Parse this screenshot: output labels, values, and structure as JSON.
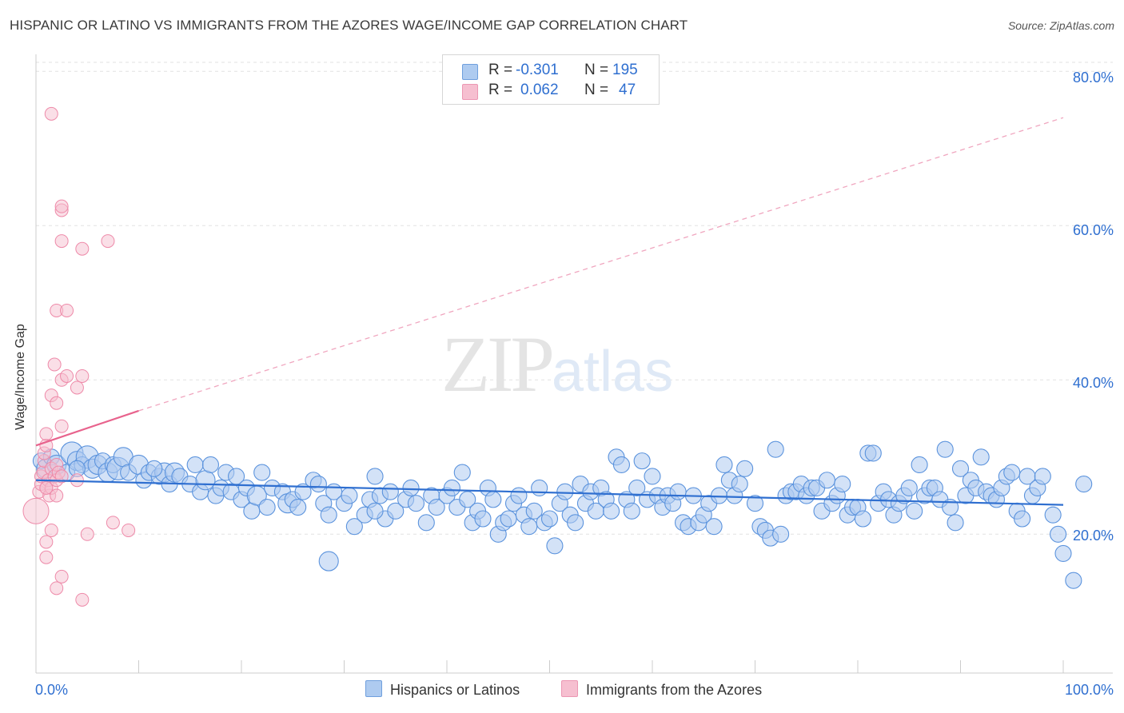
{
  "title": "HISPANIC OR LATINO VS IMMIGRANTS FROM THE AZORES WAGE/INCOME GAP CORRELATION CHART",
  "source": "Source: ZipAtlas.com",
  "watermark": {
    "zip": "ZIP",
    "atlas": "atlas"
  },
  "legend_top": {
    "rows": [
      {
        "r_label": "R =",
        "r_value": "-0.301",
        "n_label": "N =",
        "n_value": "195",
        "color": "#aecbf0"
      },
      {
        "r_label": "R =",
        "r_value": "0.062",
        "n_label": "N =",
        "n_value": "47",
        "color": "#f6bfd0"
      }
    ]
  },
  "legend_bottom": [
    {
      "label": "Hispanics or Latinos",
      "color": "#aecbf0"
    },
    {
      "label": "Immigrants from the Azores",
      "color": "#f6bfd0"
    }
  ],
  "chart_data": {
    "type": "scatter",
    "title": "HISPANIC OR LATINO VS IMMIGRANTS FROM THE AZORES WAGE/INCOME GAP CORRELATION CHART",
    "xlabel": "",
    "ylabel": "Wage/Income Gap",
    "xlim": [
      0,
      100
    ],
    "ylim": [
      2,
      82
    ],
    "x_tick_labels": [
      "0.0%",
      "100.0%"
    ],
    "y_ticks": [
      20,
      40,
      60,
      80
    ],
    "y_tick_labels": [
      "20.0%",
      "40.0%",
      "60.0%",
      "80.0%"
    ],
    "grid": true,
    "series": [
      {
        "name": "Hispanics or Latinos",
        "color": "#5b93dd",
        "fill": "#aecbf0",
        "trend": {
          "x": [
            0,
            100
          ],
          "y": [
            27.0,
            23.8
          ],
          "color": "#2f6fd0"
        },
        "points": [
          [
            0.5,
            29.5,
            10
          ],
          [
            1,
            28.5,
            12
          ],
          [
            1.5,
            30,
            10
          ],
          [
            2,
            29,
            12
          ],
          [
            3,
            28,
            10
          ],
          [
            3.5,
            30.5,
            14
          ],
          [
            4,
            29.5,
            12
          ],
          [
            4.5,
            29,
            10
          ],
          [
            5,
            30,
            14
          ],
          [
            5.5,
            28.5,
            12
          ],
          [
            6,
            29,
            12
          ],
          [
            6.5,
            29.5,
            10
          ],
          [
            7,
            28,
            12
          ],
          [
            7.5,
            29,
            10
          ],
          [
            8,
            28.5,
            14
          ],
          [
            8.5,
            30,
            12
          ],
          [
            9,
            28,
            10
          ],
          [
            10,
            29,
            12
          ],
          [
            10.5,
            27,
            10
          ],
          [
            11,
            28,
            10
          ],
          [
            12,
            27.5,
            10
          ],
          [
            12.5,
            28,
            12
          ],
          [
            13,
            26.5,
            10
          ],
          [
            13.5,
            28,
            12
          ],
          [
            14,
            27.5,
            10
          ],
          [
            15,
            26.5,
            10
          ],
          [
            15.5,
            29,
            10
          ],
          [
            16,
            25.5,
            10
          ],
          [
            16.5,
            27,
            12
          ],
          [
            17,
            29,
            10
          ],
          [
            17.5,
            25,
            10
          ],
          [
            18,
            26,
            10
          ],
          [
            18.5,
            28,
            10
          ],
          [
            19,
            25.5,
            10
          ],
          [
            19.5,
            27.5,
            10
          ],
          [
            20,
            24.5,
            10
          ],
          [
            20.5,
            26,
            10
          ],
          [
            21,
            23,
            10
          ],
          [
            21.5,
            25,
            12
          ],
          [
            22,
            28,
            10
          ],
          [
            22.5,
            23.5,
            10
          ],
          [
            23,
            26,
            10
          ],
          [
            24,
            25.5,
            10
          ],
          [
            24.5,
            24,
            12
          ],
          [
            25,
            24.5,
            10
          ],
          [
            25.5,
            23.5,
            10
          ],
          [
            26,
            25.5,
            10
          ],
          [
            27,
            27,
            10
          ],
          [
            27.5,
            26.5,
            10
          ],
          [
            28,
            24,
            10
          ],
          [
            28.5,
            22.5,
            10
          ],
          [
            29,
            25.5,
            10
          ],
          [
            30,
            24,
            10
          ],
          [
            30.5,
            25,
            10
          ],
          [
            31,
            21,
            10
          ],
          [
            32,
            22.5,
            10
          ],
          [
            32.5,
            24.5,
            10
          ],
          [
            33,
            27.5,
            10
          ],
          [
            33.5,
            25,
            10
          ],
          [
            34,
            22,
            10
          ],
          [
            34.5,
            25.5,
            10
          ],
          [
            35,
            23,
            10
          ],
          [
            36,
            24.5,
            10
          ],
          [
            36.5,
            26,
            10
          ],
          [
            37,
            24,
            10
          ],
          [
            38,
            21.5,
            10
          ],
          [
            38.5,
            25,
            10
          ],
          [
            39,
            23.5,
            10
          ],
          [
            40,
            25,
            10
          ],
          [
            40.5,
            26,
            10
          ],
          [
            41,
            23.5,
            10
          ],
          [
            41.5,
            28,
            10
          ],
          [
            42,
            24.5,
            10
          ],
          [
            42.5,
            21.5,
            10
          ],
          [
            43,
            23,
            10
          ],
          [
            43.5,
            22,
            10
          ],
          [
            44,
            26,
            10
          ],
          [
            44.5,
            24.5,
            10
          ],
          [
            45,
            20,
            10
          ],
          [
            45.5,
            21.5,
            10
          ],
          [
            46,
            22,
            10
          ],
          [
            46.5,
            24,
            10
          ],
          [
            47,
            25,
            10
          ],
          [
            47.5,
            22.5,
            10
          ],
          [
            48,
            21,
            10
          ],
          [
            48.5,
            23,
            10
          ],
          [
            49,
            26,
            10
          ],
          [
            49.5,
            21.5,
            10
          ],
          [
            50,
            22,
            10
          ],
          [
            50.5,
            18.5,
            10
          ],
          [
            51,
            24,
            10
          ],
          [
            51.5,
            25.5,
            10
          ],
          [
            52,
            22.5,
            10
          ],
          [
            52.5,
            21.5,
            10
          ],
          [
            53,
            26.5,
            10
          ],
          [
            53.5,
            24,
            10
          ],
          [
            54,
            25.5,
            10
          ],
          [
            54.5,
            23,
            10
          ],
          [
            55,
            26,
            10
          ],
          [
            55.5,
            24.5,
            10
          ],
          [
            56,
            23,
            10
          ],
          [
            56.5,
            30,
            10
          ],
          [
            57,
            29,
            10
          ],
          [
            57.5,
            24.5,
            10
          ],
          [
            58,
            23,
            10
          ],
          [
            58.5,
            26,
            10
          ],
          [
            59,
            29.5,
            10
          ],
          [
            59.5,
            24.5,
            10
          ],
          [
            60,
            27.5,
            10
          ],
          [
            60.5,
            25,
            10
          ],
          [
            61,
            23.5,
            10
          ],
          [
            61.5,
            25,
            10
          ],
          [
            62,
            24,
            10
          ],
          [
            62.5,
            25.5,
            10
          ],
          [
            63,
            21.5,
            10
          ],
          [
            63.5,
            21,
            10
          ],
          [
            64,
            25,
            10
          ],
          [
            64.5,
            21.5,
            10
          ],
          [
            65,
            22.5,
            10
          ],
          [
            65.5,
            24,
            10
          ],
          [
            66,
            21,
            10
          ],
          [
            66.5,
            25,
            10
          ],
          [
            67,
            29,
            10
          ],
          [
            67.5,
            27,
            10
          ],
          [
            68,
            25,
            10
          ],
          [
            68.5,
            26.5,
            10
          ],
          [
            69,
            28.5,
            10
          ],
          [
            70,
            24,
            10
          ],
          [
            70.5,
            21,
            10
          ],
          [
            71,
            20.5,
            10
          ],
          [
            71.5,
            19.5,
            10
          ],
          [
            72,
            31,
            10
          ],
          [
            72.5,
            20,
            10
          ],
          [
            73,
            25,
            10
          ],
          [
            73.5,
            25.5,
            10
          ],
          [
            74,
            25.5,
            10
          ],
          [
            74.5,
            26.5,
            10
          ],
          [
            75,
            25,
            10
          ],
          [
            75.5,
            26,
            10
          ],
          [
            76,
            26,
            10
          ],
          [
            76.5,
            23,
            10
          ],
          [
            77,
            27,
            10
          ],
          [
            77.5,
            24,
            10
          ],
          [
            78,
            25,
            10
          ],
          [
            78.5,
            26.5,
            10
          ],
          [
            79,
            22.5,
            10
          ],
          [
            79.5,
            23.5,
            10
          ],
          [
            80,
            23.5,
            10
          ],
          [
            80.5,
            22,
            10
          ],
          [
            81,
            30.5,
            10
          ],
          [
            81.5,
            30.5,
            10
          ],
          [
            82,
            24,
            10
          ],
          [
            82.5,
            25.5,
            10
          ],
          [
            83,
            24.5,
            10
          ],
          [
            83.5,
            22.5,
            10
          ],
          [
            84,
            24,
            10
          ],
          [
            84.5,
            25,
            10
          ],
          [
            85,
            26,
            10
          ],
          [
            85.5,
            23,
            10
          ],
          [
            86,
            29,
            10
          ],
          [
            86.5,
            25,
            10
          ],
          [
            87,
            26,
            10
          ],
          [
            87.5,
            26,
            10
          ],
          [
            88,
            24.5,
            10
          ],
          [
            88.5,
            31,
            10
          ],
          [
            89,
            23.5,
            10
          ],
          [
            89.5,
            21.5,
            10
          ],
          [
            90,
            28.5,
            10
          ],
          [
            90.5,
            25,
            10
          ],
          [
            91,
            27,
            10
          ],
          [
            91.5,
            26,
            10
          ],
          [
            92,
            30,
            10
          ],
          [
            92.5,
            25.5,
            10
          ],
          [
            93,
            25,
            10
          ],
          [
            93.5,
            24.5,
            10
          ],
          [
            94,
            26,
            10
          ],
          [
            94.5,
            27.5,
            10
          ],
          [
            95,
            28,
            10
          ],
          [
            95.5,
            23,
            10
          ],
          [
            96,
            22,
            10
          ],
          [
            96.5,
            27.5,
            10
          ],
          [
            97,
            25,
            10
          ],
          [
            97.5,
            26,
            10
          ],
          [
            98,
            27.5,
            10
          ],
          [
            99,
            22.5,
            10
          ],
          [
            99.5,
            20,
            10
          ],
          [
            100,
            17.5,
            10
          ],
          [
            101,
            14,
            10
          ],
          [
            102,
            26.5,
            10
          ],
          [
            28.5,
            16.5,
            12
          ],
          [
            4,
            28.5,
            10
          ],
          [
            11.5,
            28.5,
            10
          ],
          [
            33,
            23,
            10
          ]
        ]
      },
      {
        "name": "Immigrants from the Azores",
        "color": "#ee8aa9",
        "fill": "#f6bfd0",
        "trend": {
          "x": [
            0,
            10
          ],
          "y": [
            31.5,
            36.0
          ],
          "color": "#e8638d",
          "dashed_to": [
            100,
            74.0
          ]
        },
        "points": [
          [
            0,
            23,
            16
          ],
          [
            0.3,
            25.5,
            8
          ],
          [
            0.5,
            26.5,
            8
          ],
          [
            0.5,
            27.5,
            8
          ],
          [
            0.7,
            28,
            8
          ],
          [
            0.8,
            29.5,
            8
          ],
          [
            0.8,
            30.5,
            8
          ],
          [
            1,
            31.5,
            8
          ],
          [
            1,
            33,
            8
          ],
          [
            1,
            26,
            8
          ],
          [
            1.2,
            27,
            8
          ],
          [
            1.3,
            25,
            8
          ],
          [
            1.5,
            28.5,
            8
          ],
          [
            1.5,
            26,
            8
          ],
          [
            1.8,
            27.5,
            8
          ],
          [
            2,
            27,
            8
          ],
          [
            2,
            29,
            8
          ],
          [
            2.2,
            28,
            8
          ],
          [
            2.5,
            27.5,
            8
          ],
          [
            2.5,
            34,
            8
          ],
          [
            1.5,
            38,
            8
          ],
          [
            2.5,
            40,
            8
          ],
          [
            1.8,
            42,
            8
          ],
          [
            2,
            37,
            8
          ],
          [
            4,
            39,
            8
          ],
          [
            3,
            40.5,
            8
          ],
          [
            4.5,
            40.5,
            8
          ],
          [
            2,
            49,
            8
          ],
          [
            3,
            49,
            8
          ],
          [
            2.5,
            58,
            8
          ],
          [
            4.5,
            57,
            8
          ],
          [
            7,
            58,
            8
          ],
          [
            2.5,
            62,
            8
          ],
          [
            2.5,
            62.5,
            8
          ],
          [
            1.5,
            74.5,
            8
          ],
          [
            1,
            19,
            8
          ],
          [
            1,
            17,
            8
          ],
          [
            1.5,
            20.5,
            8
          ],
          [
            2,
            13,
            8
          ],
          [
            2.5,
            14.5,
            8
          ],
          [
            4.5,
            11.5,
            8
          ],
          [
            5,
            20,
            8
          ],
          [
            7.5,
            21.5,
            8
          ],
          [
            9,
            20.5,
            8
          ],
          [
            4,
            27,
            8
          ],
          [
            1,
            26,
            8
          ],
          [
            2,
            25,
            8
          ]
        ]
      }
    ]
  }
}
